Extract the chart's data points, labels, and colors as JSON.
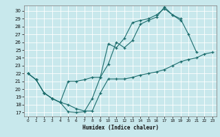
{
  "xlabel": "Humidex (Indice chaleur)",
  "bg_color": "#c8e8ec",
  "grid_color": "#b0d8dc",
  "line_color": "#1a6b6b",
  "xlim": [
    -0.5,
    23.5
  ],
  "ylim": [
    16.5,
    30.7
  ],
  "xticks": [
    0,
    1,
    2,
    3,
    4,
    5,
    6,
    7,
    8,
    9,
    10,
    11,
    12,
    13,
    14,
    15,
    16,
    17,
    18,
    19,
    20,
    21,
    22,
    23
  ],
  "yticks": [
    17,
    18,
    19,
    20,
    21,
    22,
    23,
    24,
    25,
    26,
    27,
    28,
    29,
    30
  ],
  "curves": [
    {
      "x": [
        0,
        1,
        2,
        3,
        4,
        5,
        6,
        7,
        8,
        9,
        10,
        11,
        12,
        13,
        14,
        15,
        16,
        17,
        18,
        19,
        20,
        21
      ],
      "y": [
        22.0,
        21.2,
        19.5,
        18.8,
        18.3,
        17.1,
        17.0,
        17.1,
        18.8,
        21.5,
        23.2,
        26.0,
        25.3,
        26.2,
        28.3,
        28.8,
        29.2,
        30.5,
        29.5,
        29.0,
        27.0,
        24.7
      ]
    },
    {
      "x": [
        0,
        1,
        2,
        3,
        4,
        5,
        6,
        7,
        8,
        9,
        10,
        11,
        12,
        13,
        14,
        15,
        16,
        17,
        18,
        19
      ],
      "y": [
        22.0,
        21.2,
        19.5,
        18.8,
        18.3,
        21.0,
        21.0,
        21.2,
        21.5,
        21.5,
        25.8,
        25.3,
        26.5,
        28.5,
        28.8,
        29.0,
        29.5,
        30.3,
        29.5,
        28.8
      ]
    },
    {
      "x": [
        0,
        1,
        2,
        3,
        4,
        5,
        6,
        7,
        8,
        9,
        10,
        11,
        12,
        13,
        14,
        15,
        16,
        17,
        18,
        19,
        20,
        21,
        22,
        23
      ],
      "y": [
        22.0,
        21.2,
        19.5,
        18.8,
        18.3,
        18.0,
        17.5,
        17.2,
        17.2,
        19.5,
        21.3,
        21.3,
        21.3,
        21.5,
        21.8,
        22.0,
        22.2,
        22.5,
        23.0,
        23.5,
        23.8,
        24.0,
        24.5,
        24.7
      ]
    }
  ]
}
